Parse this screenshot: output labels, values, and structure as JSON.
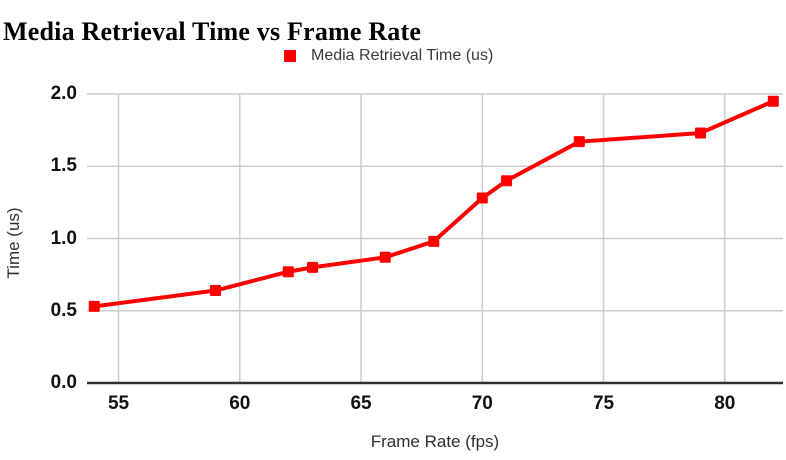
{
  "title": "Media Retrieval Time vs Frame Rate",
  "legend": {
    "label": "Media Retrieval Time (us)"
  },
  "chart_data": {
    "type": "line",
    "title": "Media Retrieval Time vs Frame Rate",
    "xlabel": "Frame Rate (fps)",
    "ylabel": "Time (us)",
    "series": [
      {
        "name": "Media Retrieval Time (us)",
        "color": "#ff0000",
        "marker": "square",
        "x": [
          54,
          59,
          62,
          63,
          66,
          68,
          70,
          71,
          74,
          79,
          82
        ],
        "y": [
          0.53,
          0.64,
          0.77,
          0.8,
          0.87,
          0.98,
          1.28,
          1.4,
          1.67,
          1.73,
          1.95
        ]
      }
    ],
    "x_ticks": [
      55,
      60,
      65,
      70,
      75,
      80
    ],
    "y_tick_values": [
      0.0,
      0.5,
      1.0,
      1.5,
      2.0
    ],
    "y_tick_labels": [
      "0.0",
      "0.5",
      "1.0",
      "1.5",
      "2.0"
    ],
    "xlim": [
      53.7,
      82.4
    ],
    "ylim": [
      0,
      2
    ],
    "grid": true,
    "legend_position": "top"
  },
  "colors": {
    "line": "#ff0000",
    "grid": "#cccccc",
    "axis": "#333333",
    "tick_label": "#111111",
    "text": "#3a3a3a",
    "background": "#ffffff"
  }
}
